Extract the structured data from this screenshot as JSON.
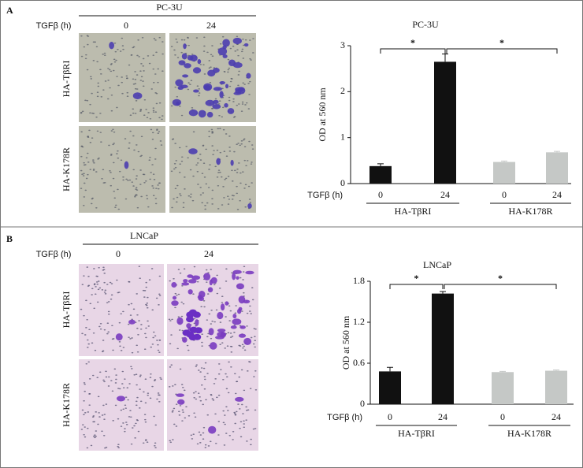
{
  "panels": [
    {
      "label": "A",
      "cell_line": "PC-3U",
      "time_label": "TGFβ (h)",
      "times": [
        "0",
        "24"
      ],
      "rows": [
        "HA-TβRI",
        "HA-K178R"
      ]
    },
    {
      "label": "B",
      "cell_line": "LNCaP",
      "time_label": "TGFβ (h)",
      "times": [
        "0",
        "24"
      ],
      "rows": [
        "HA-TβRI",
        "HA-K178R"
      ]
    }
  ],
  "chart_data": [
    {
      "type": "bar",
      "title": "PC-3U",
      "y_label": "OD at 560 nm",
      "x_label": "TGFβ (h)",
      "categories": [
        "0",
        "24",
        "0",
        "24"
      ],
      "groups": [
        "HA-TβRI",
        "HA-K178R"
      ],
      "values": [
        0.38,
        2.65,
        0.47,
        0.68
      ],
      "errors": [
        0.05,
        0.17,
        0.02,
        0.02
      ],
      "colors": [
        "#111111",
        "#111111",
        "#c5c8c6",
        "#c5c8c6"
      ],
      "ylim": [
        0,
        3
      ],
      "yticks": [
        0,
        1,
        2,
        3
      ],
      "annotations": [
        "*",
        "*"
      ]
    },
    {
      "type": "bar",
      "title": "LNCaP",
      "y_label": "OD at 560 nm",
      "x_label": "TGFβ (h)",
      "categories": [
        "0",
        "24",
        "0",
        "24"
      ],
      "groups": [
        "HA-TβRI",
        "HA-K178R"
      ],
      "values": [
        0.48,
        1.62,
        0.47,
        0.49
      ],
      "errors": [
        0.06,
        0.03,
        0.01,
        0.01
      ],
      "colors": [
        "#111111",
        "#111111",
        "#c5c8c6",
        "#c5c8c6"
      ],
      "ylim": [
        0,
        1.8
      ],
      "yticks": [
        0,
        0.6,
        1.2,
        1.8
      ],
      "annotations": [
        "*",
        "*"
      ]
    }
  ]
}
